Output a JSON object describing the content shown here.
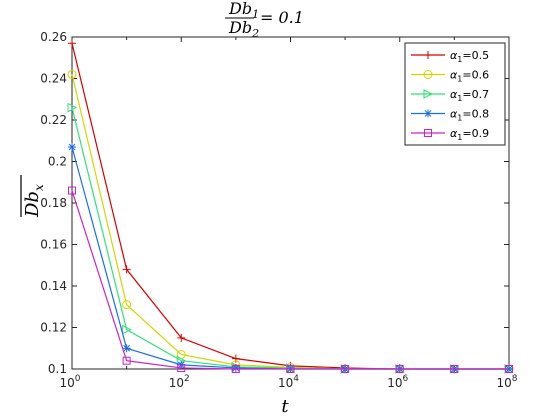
{
  "chart_data": {
    "type": "line",
    "title_num": "Db",
    "title_num_sub": "1",
    "title_den": "Db",
    "title_den_sub": "2",
    "title_rhs": "= 0.1",
    "xlabel": "t",
    "ylabel": "Db",
    "ylabel_sub": "x",
    "x_scale": "log",
    "xlim": [
      1,
      100000000
    ],
    "ylim": [
      0.1,
      0.26
    ],
    "x_ticks": [
      {
        "value": 1,
        "base": "10",
        "exp": "0"
      },
      {
        "value": 100,
        "base": "10",
        "exp": "2"
      },
      {
        "value": 10000,
        "base": "10",
        "exp": "4"
      },
      {
        "value": 1000000,
        "base": "10",
        "exp": "6"
      },
      {
        "value": 100000000,
        "base": "10",
        "exp": "8"
      }
    ],
    "y_ticks": [
      "0.1",
      "0.12",
      "0.14",
      "0.16",
      "0.18",
      "0.2",
      "0.22",
      "0.24",
      "0.26"
    ],
    "legend_position": "top-right",
    "x": [
      1,
      10,
      100,
      1000,
      10000,
      100000,
      1000000,
      10000000,
      100000000
    ],
    "series": [
      {
        "symbol": "α",
        "sub": "1",
        "eq": "=0.5",
        "color": "#d40000",
        "marker": "plus",
        "values": [
          0.257,
          0.148,
          0.115,
          0.105,
          0.1015,
          0.1005,
          0.1,
          0.1,
          0.1
        ]
      },
      {
        "symbol": "α",
        "sub": "1",
        "eq": "=0.6",
        "color": "#d4d400",
        "marker": "circle",
        "values": [
          0.242,
          0.131,
          0.107,
          0.102,
          0.1008,
          0.1,
          0.1,
          0.1,
          0.1
        ]
      },
      {
        "symbol": "α",
        "sub": "1",
        "eq": "=0.7",
        "color": "#33e07a",
        "marker": "triangle-right",
        "values": [
          0.226,
          0.119,
          0.104,
          0.101,
          0.1005,
          0.1,
          0.1,
          0.1,
          0.1
        ]
      },
      {
        "symbol": "α",
        "sub": "1",
        "eq": "=0.8",
        "color": "#1a6fe6",
        "marker": "star",
        "values": [
          0.207,
          0.11,
          0.102,
          0.1005,
          0.1,
          0.1,
          0.1,
          0.1,
          0.1
        ]
      },
      {
        "symbol": "α",
        "sub": "1",
        "eq": "=0.9",
        "color": "#cc22cc",
        "marker": "square",
        "values": [
          0.186,
          0.104,
          0.1005,
          0.1,
          0.1,
          0.1,
          0.1,
          0.1,
          0.1
        ]
      }
    ]
  }
}
